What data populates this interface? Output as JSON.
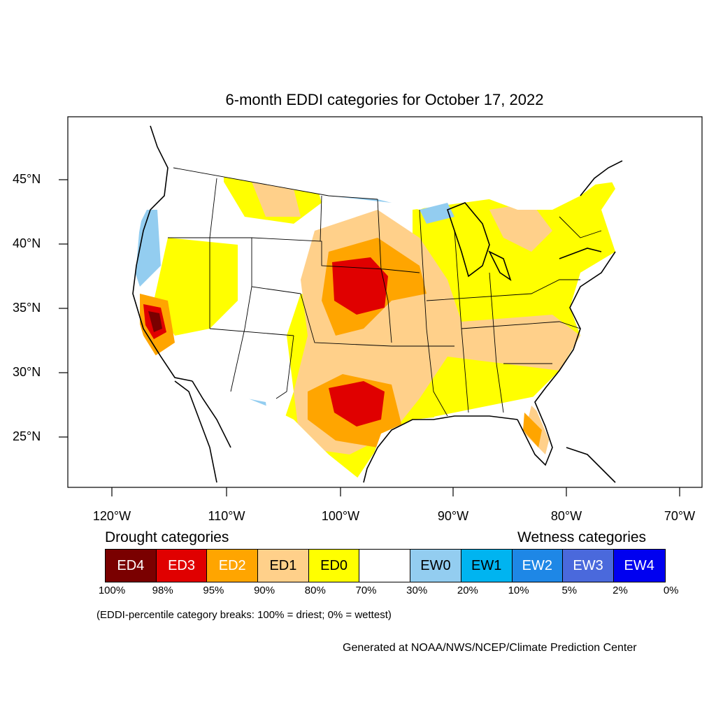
{
  "title": "6-month EDDI categories for October 17, 2022",
  "lat_labels": [
    "45°N",
    "40°N",
    "35°N",
    "30°N",
    "25°N"
  ],
  "lon_labels": [
    "120°W",
    "110°W",
    "100°W",
    "90°W",
    "80°W",
    "70°W"
  ],
  "legend": {
    "drought_heading": "Drought categories",
    "wetness_heading": "Wetness categories",
    "categories": [
      {
        "label": "ED4",
        "color": "#7a0000",
        "text_color": "#ffffff"
      },
      {
        "label": "ED3",
        "color": "#e00000",
        "text_color": "#ffffff"
      },
      {
        "label": "ED2",
        "color": "#ffa500",
        "text_color": "#ffffff"
      },
      {
        "label": "ED1",
        "color": "#ffd08a",
        "text_color": "#000000"
      },
      {
        "label": "ED0",
        "color": "#ffff00",
        "text_color": "#000000"
      },
      {
        "label": "",
        "color": "#ffffff",
        "text_color": "#000000"
      },
      {
        "label": "EW0",
        "color": "#93cdf0",
        "text_color": "#000000"
      },
      {
        "label": "EW1",
        "color": "#00b4f0",
        "text_color": "#000000"
      },
      {
        "label": "EW2",
        "color": "#1e87e6",
        "text_color": "#ffffff"
      },
      {
        "label": "EW3",
        "color": "#4a69dc",
        "text_color": "#ffffff"
      },
      {
        "label": "EW4",
        "color": "#0000f0",
        "text_color": "#ffffff"
      }
    ],
    "breaks": [
      "100%",
      "98%",
      "95%",
      "90%",
      "80%",
      "70%",
      "30%",
      "20%",
      "10%",
      "5%",
      "2%",
      "0%"
    ]
  },
  "note": "(EDDI-percentile category breaks: 100% = driest; 0% = wettest)",
  "credit": "Generated at NOAA/NWS/NCEP/Climate Prediction Center"
}
